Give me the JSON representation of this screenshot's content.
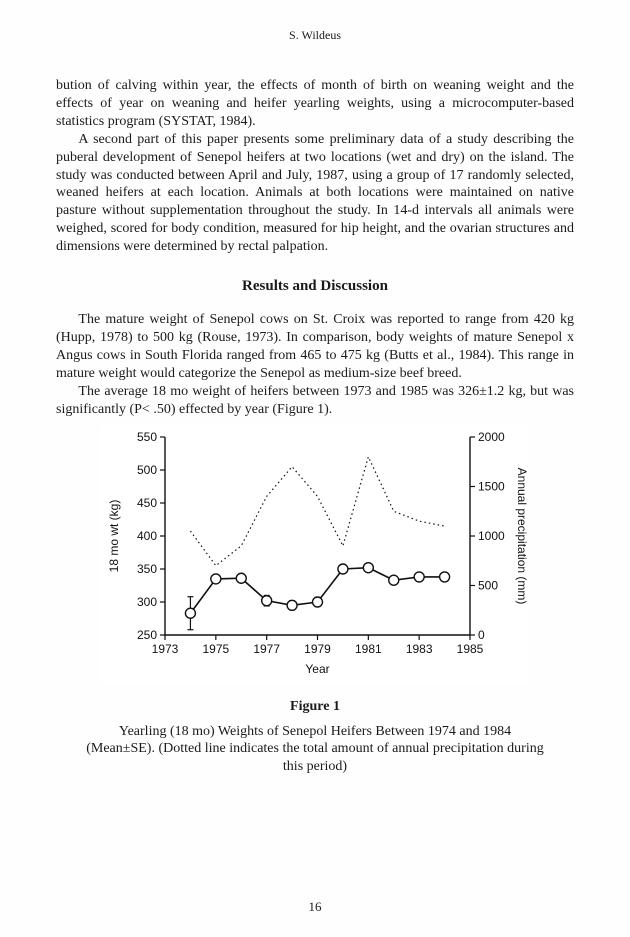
{
  "header": {
    "author": "S. Wildeus"
  },
  "body": {
    "p1": "bution of calving within year, the effects of month of birth on weaning weight and the effects of year on weaning and heifer yearling weights, using a microcomputer-based statistics program (SYSTAT, 1984).",
    "p2": "A second part of this paper presents some preliminary data of a study describing the puberal development of Senepol heifers at two locations (wet and dry) on the island. The study was conducted between April and July, 1987, using a group of 17 randomly selected, weaned heifers at each location. Animals at both locations were maintained on native pasture without supplementation throughout the study. In 14-d intervals all animals were weighed, scored for body condition, measured for hip height, and the ovarian structures and dimensions were determined by rectal palpation.",
    "section_title": "Results and Discussion",
    "p3": "The mature weight of Senepol cows on St. Croix was reported to range from 420 kg (Hupp, 1978) to 500 kg (Rouse, 1973). In comparison, body weights of mature Senepol x Angus cows in South Florida ranged from 465 to 475 kg (Butts et al., 1984). This range in mature weight would categorize the Senepol as medium-size beef breed.",
    "p4": "The average 18 mo weight of heifers between 1973 and 1985 was 326±1.2 kg, but was significantly (P< .50) effected by year (Figure 1)."
  },
  "figure": {
    "title": "Figure 1",
    "caption": "Yearling (18 mo) Weights of Senepol Heifers Between 1974 and 1984 (Mean±SE). (Dotted line indicates the total amount of annual precipitation during this period)",
    "chart": {
      "type": "line",
      "xlabel": "Year",
      "ylabel_left": "18 mo wt (kg)",
      "ylabel_right": "Annual precipitation (mm)",
      "xlim": [
        1973,
        1985
      ],
      "xtick_step": 2,
      "xtick_labels": [
        "1973",
        "1975",
        "1977",
        "1979",
        "1981",
        "1983",
        "1985"
      ],
      "ylim_left": [
        250,
        550
      ],
      "ytick_left_step": 50,
      "ytick_left_labels": [
        "250",
        "300",
        "350",
        "400",
        "450",
        "500",
        "550"
      ],
      "ylim_right": [
        0,
        2000
      ],
      "ytick_right_step": 500,
      "ytick_right_labels": [
        "0",
        "500",
        "1000",
        "1500",
        "2000"
      ],
      "weight_series": {
        "years": [
          1974,
          1975,
          1976,
          1977,
          1978,
          1979,
          1980,
          1981,
          1982,
          1983,
          1984
        ],
        "mean": [
          283,
          335,
          336,
          302,
          295,
          300,
          350,
          352,
          333,
          338,
          338
        ],
        "se": [
          25,
          6,
          6,
          8,
          7,
          7,
          4,
          5,
          5,
          5,
          6
        ],
        "color": "#111111",
        "line_width": 1.6,
        "marker": "circle-open",
        "marker_size": 5
      },
      "precip_series": {
        "years": [
          1974,
          1975,
          1976,
          1977,
          1978,
          1979,
          1980,
          1981,
          1982,
          1983,
          1984
        ],
        "mm": [
          1050,
          700,
          900,
          1400,
          1700,
          1400,
          900,
          1800,
          1250,
          1150,
          1100
        ],
        "color": "#111111",
        "style": "dotted",
        "line_width": 1.2
      },
      "axis_color": "#111111",
      "background_color": "#ffffff",
      "tick_fontsize": 12,
      "label_fontsize": 12,
      "label_fontfamily": "sans-serif"
    }
  },
  "pagenum": "16"
}
